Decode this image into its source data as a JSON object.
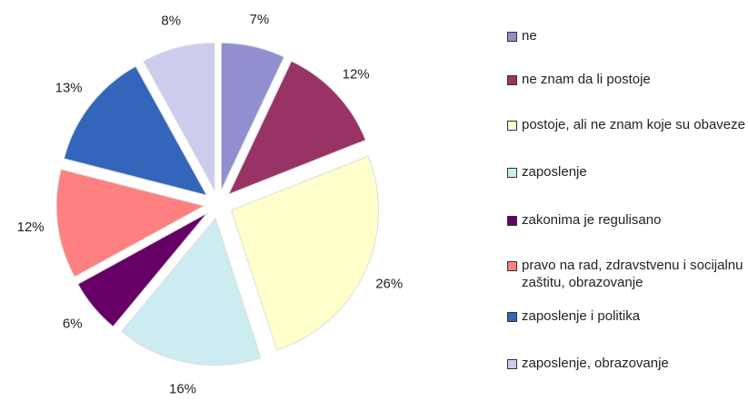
{
  "chart_data": {
    "type": "pie",
    "categories": [
      "ne",
      "ne znam da li postoje",
      "postoje, ali ne znam koje su obaveze",
      "zaposlenje",
      "zakonima je regulisano",
      "pravo na rad, zdravstvenu i socijalnu zaštitu, obrazovanje",
      "zaposlenje i politika",
      "zaposlenje, obrazovanje"
    ],
    "values": [
      7,
      12,
      26,
      16,
      6,
      12,
      13,
      8
    ],
    "value_labels": [
      "7%",
      "12%",
      "26%",
      "16%",
      "6%",
      "12%",
      "13%",
      "8%"
    ],
    "colors": [
      "#9090d0",
      "#993366",
      "#ffffcc",
      "#ccecf2",
      "#660066",
      "#ff8080",
      "#3366bb",
      "#ccccec"
    ],
    "legend": "right"
  }
}
